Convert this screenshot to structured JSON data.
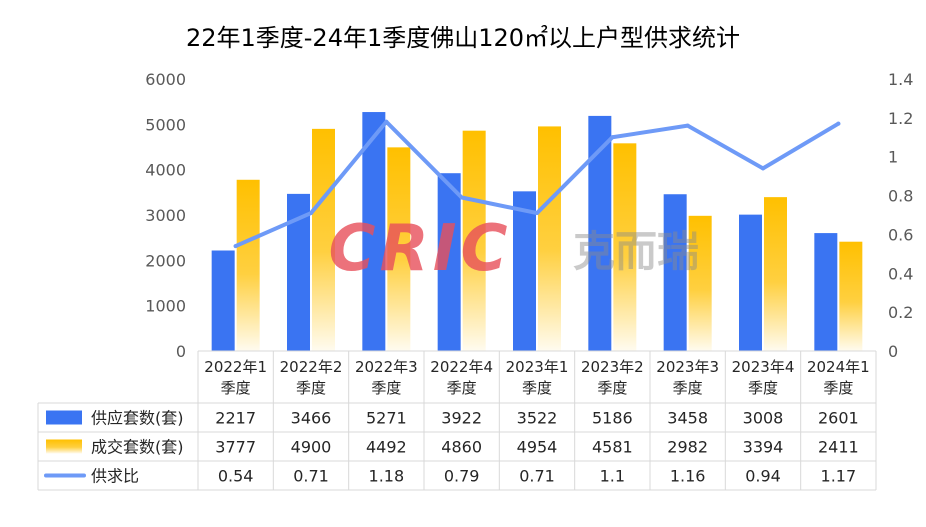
{
  "chart_data": {
    "type": "bar",
    "title": "22年1季度-24年1季度佛山120㎡以上户型供求统计",
    "categories": [
      [
        "2022年1",
        "季度"
      ],
      [
        "2022年2",
        "季度"
      ],
      [
        "2022年3",
        "季度"
      ],
      [
        "2022年4",
        "季度"
      ],
      [
        "2023年1",
        "季度"
      ],
      [
        "2023年2",
        "季度"
      ],
      [
        "2023年3",
        "季度"
      ],
      [
        "2023年4",
        "季度"
      ],
      [
        "2024年1",
        "季度"
      ]
    ],
    "series": [
      {
        "name": "供应套数(套)",
        "kind": "bar",
        "axis": "left",
        "color": "#3a74f2",
        "values": [
          2217,
          3466,
          5271,
          3922,
          3522,
          5186,
          3458,
          3008,
          2601
        ],
        "labels": [
          "2217",
          "3466",
          "5271",
          "3922",
          "3522",
          "5186",
          "3458",
          "3008",
          "2601"
        ]
      },
      {
        "name": "成交套数(套)",
        "kind": "bar",
        "axis": "left",
        "color": "#ffc000",
        "values": [
          3777,
          4900,
          4492,
          4860,
          4954,
          4581,
          2982,
          3394,
          2411
        ],
        "labels": [
          "3777",
          "4900",
          "4492",
          "4860",
          "4954",
          "4581",
          "2982",
          "3394",
          "2411"
        ]
      },
      {
        "name": "供求比",
        "kind": "line",
        "axis": "right",
        "color": "#6e9af7",
        "values": [
          0.54,
          0.71,
          1.18,
          0.79,
          0.71,
          1.1,
          1.16,
          0.94,
          1.17
        ],
        "labels": [
          "0.54",
          "0.71",
          "1.18",
          "0.79",
          "0.71",
          "1.1",
          "1.16",
          "0.94",
          "1.17"
        ]
      }
    ],
    "y_left": {
      "min": 0,
      "max": 6000,
      "ticks": [
        "0",
        "1000",
        "2000",
        "3000",
        "4000",
        "5000",
        "6000"
      ]
    },
    "y_right": {
      "min": 0,
      "max": 1.4,
      "ticks": [
        "0",
        "0.2",
        "0.4",
        "0.6",
        "0.8",
        "1",
        "1.2",
        "1.4"
      ]
    },
    "grid": false,
    "legend": "data-table"
  },
  "watermark": {
    "logo": "CRIC",
    "text": "克而瑞"
  }
}
